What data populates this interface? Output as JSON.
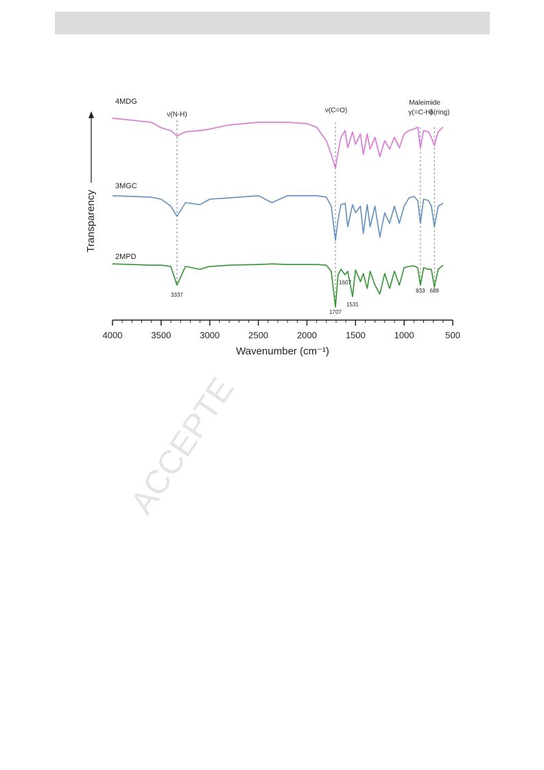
{
  "chart_data": {
    "type": "line",
    "watermark": "ACCEPTE",
    "x_label": "Wavenumber (cm⁻¹)",
    "y_label": "Transparency",
    "xlim": [
      4000,
      500
    ],
    "xticks": [
      4000,
      3500,
      3000,
      2500,
      2000,
      1500,
      1000,
      500
    ],
    "ylim": [
      0,
      100
    ],
    "x": [
      4000,
      3800,
      3600,
      3500,
      3400,
      3337,
      3250,
      3100,
      3000,
      2800,
      2500,
      2360,
      2200,
      2000,
      1900,
      1800,
      1750,
      1707,
      1680,
      1650,
      1607,
      1580,
      1531,
      1500,
      1450,
      1420,
      1380,
      1350,
      1300,
      1250,
      1200,
      1150,
      1100,
      1050,
      1000,
      950,
      900,
      860,
      833,
      800,
      750,
      720,
      689,
      650,
      600
    ],
    "series": [
      {
        "name": "4MDG",
        "color": "#e86ee0",
        "values": [
          93.0,
          92.1,
          91.1,
          88.6,
          87.3,
          84.8,
          86.7,
          87.3,
          88.0,
          89.9,
          91.1,
          91.1,
          91.1,
          90.5,
          88.9,
          82.6,
          76.3,
          70.0,
          77.2,
          84.2,
          87.3,
          79.4,
          86.7,
          81.0,
          85.8,
          76.3,
          85.8,
          78.8,
          84.2,
          75.3,
          82.6,
          78.8,
          84.2,
          79.4,
          85.8,
          87.3,
          88.0,
          88.9,
          79.4,
          87.3,
          86.7,
          84.2,
          80.4,
          86.7,
          88.9
        ]
      },
      {
        "name": "3MGC",
        "color": "#5b8fcf",
        "values": [
          57.3,
          57.0,
          56.6,
          55.7,
          52.5,
          47.8,
          54.1,
          53.2,
          55.7,
          56.3,
          57.3,
          54.1,
          57.3,
          57.3,
          57.3,
          56.6,
          52.5,
          36.7,
          46.2,
          53.2,
          53.8,
          43.0,
          53.2,
          49.4,
          52.5,
          39.9,
          53.2,
          43.0,
          52.5,
          38.3,
          49.4,
          44.6,
          52.5,
          44.6,
          52.5,
          56.3,
          57.0,
          55.1,
          44.6,
          55.7,
          55.1,
          52.5,
          43.0,
          52.5,
          53.8
        ]
      },
      {
        "name": "2MPD",
        "color": "#2a9a2a",
        "values": [
          25.9,
          25.6,
          25.3,
          25.3,
          24.7,
          16.1,
          24.7,
          23.4,
          24.7,
          25.3,
          25.6,
          25.9,
          25.6,
          25.6,
          25.6,
          25.3,
          22.5,
          6.0,
          20.9,
          23.4,
          20.9,
          22.5,
          10.8,
          23.1,
          17.7,
          21.5,
          14.6,
          22.5,
          16.1,
          12.0,
          21.5,
          14.6,
          22.5,
          16.1,
          24.1,
          24.7,
          25.0,
          24.1,
          16.1,
          24.1,
          23.4,
          23.4,
          15.2,
          23.4,
          25.3
        ]
      }
    ],
    "reference_lines": [
      3337,
      1707,
      833,
      689
    ],
    "band_labels": [
      "ν(N-H)",
      "ν(C=O)",
      "Maleimide",
      "γ(=C-H)",
      "δ(ring)"
    ],
    "peak_labels": [
      3337,
      1707,
      1607,
      1531,
      833,
      689
    ]
  }
}
